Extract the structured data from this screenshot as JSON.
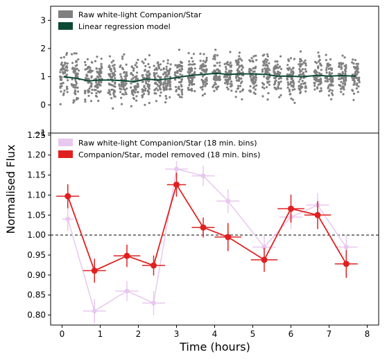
{
  "figure": {
    "ylabel": "Normalised Flux",
    "xlabel": "Time (hours)"
  },
  "chart_data": [
    {
      "type": "scatter",
      "panel": "top",
      "xlim": [
        -0.3,
        8.3
      ],
      "ylim": [
        -1,
        3.5
      ],
      "yticks": [
        -1,
        0,
        1,
        2,
        3
      ],
      "grid": false,
      "legend_position": "top-left",
      "series": [
        {
          "name": "Raw white-light Companion/Star",
          "kind": "scatter",
          "color": "#808080",
          "columns": [
            0.05,
            0.35,
            0.7,
            0.95,
            1.3,
            1.6,
            1.9,
            2.2,
            2.5,
            2.75,
            3.05,
            3.4,
            3.7,
            4.05,
            4.35,
            4.65,
            5.0,
            5.35,
            5.65,
            6.0,
            6.3,
            6.7,
            7.0,
            7.35,
            7.7
          ],
          "column_means": [
            1.0,
            0.95,
            0.85,
            0.88,
            0.88,
            0.86,
            0.82,
            0.92,
            0.88,
            0.92,
            0.98,
            1.05,
            1.08,
            1.12,
            1.08,
            1.1,
            1.1,
            1.08,
            1.02,
            1.02,
            1.0,
            1.05,
            1.02,
            1.04,
            1.02
          ],
          "spread": 1.5
        },
        {
          "name": "Linear regression model",
          "kind": "line",
          "color": "#0b4a32",
          "x": [
            0.05,
            0.35,
            0.7,
            0.95,
            1.3,
            1.6,
            1.9,
            2.2,
            2.5,
            2.75,
            3.05,
            3.4,
            3.7,
            4.05,
            4.35,
            4.65,
            5.0,
            5.35,
            5.65,
            6.0,
            6.3,
            6.7,
            7.0,
            7.35,
            7.7
          ],
          "y": [
            1.0,
            0.95,
            0.85,
            0.88,
            0.88,
            0.86,
            0.82,
            0.92,
            0.88,
            0.92,
            0.98,
            1.05,
            1.08,
            1.12,
            1.08,
            1.1,
            1.1,
            1.08,
            1.02,
            1.02,
            1.0,
            1.05,
            1.02,
            1.04,
            1.02
          ]
        }
      ]
    },
    {
      "type": "line",
      "panel": "bottom",
      "xlim": [
        -0.3,
        8.3
      ],
      "ylim": [
        0.775,
        1.255
      ],
      "xticks": [
        0,
        1,
        2,
        3,
        4,
        5,
        6,
        7,
        8
      ],
      "yticks": [
        0.8,
        0.85,
        0.9,
        0.95,
        1.0,
        1.05,
        1.1,
        1.15,
        1.2,
        1.25
      ],
      "ytick_labels": [
        "0.80",
        "0.85",
        "0.90",
        "0.95",
        "1.00",
        "1.05",
        "1.10",
        "1.15",
        "1.20",
        "1.25"
      ],
      "hline": 1.0,
      "grid": false,
      "legend_position": "top-left",
      "series": [
        {
          "name": "Raw white-light Companion/Star (18 min. bins)",
          "color": "#e8c8ee",
          "x": [
            0.15,
            0.85,
            1.7,
            2.4,
            3.0,
            3.7,
            4.35,
            5.3,
            6.0,
            6.7,
            7.45
          ],
          "y": [
            1.04,
            0.81,
            0.86,
            0.83,
            1.165,
            1.148,
            1.085,
            0.97,
            1.045,
            1.075,
            0.97
          ],
          "yerr": [
            0.03,
            0.03,
            0.025,
            0.03,
            0.02,
            0.025,
            0.03,
            0.03,
            0.03,
            0.03,
            0.03
          ],
          "xerr": [
            0.15,
            0.3,
            0.3,
            0.3,
            0.3,
            0.3,
            0.3,
            0.3,
            0.3,
            0.3,
            0.3
          ]
        },
        {
          "name": "Companion/Star, model removed (18 min. bins)",
          "color": "#e02020",
          "x": [
            0.15,
            0.85,
            1.7,
            2.4,
            3.0,
            3.7,
            4.35,
            5.3,
            6.0,
            6.7,
            7.45
          ],
          "y": [
            1.097,
            0.911,
            0.948,
            0.924,
            1.126,
            1.019,
            0.995,
            0.938,
            1.066,
            1.05,
            0.928
          ],
          "yerr": [
            0.03,
            0.03,
            0.028,
            0.025,
            0.03,
            0.025,
            0.035,
            0.03,
            0.035,
            0.035,
            0.035
          ],
          "xerr": [
            0.3,
            0.3,
            0.35,
            0.3,
            0.25,
            0.3,
            0.35,
            0.35,
            0.35,
            0.35,
            0.3
          ]
        }
      ]
    }
  ]
}
